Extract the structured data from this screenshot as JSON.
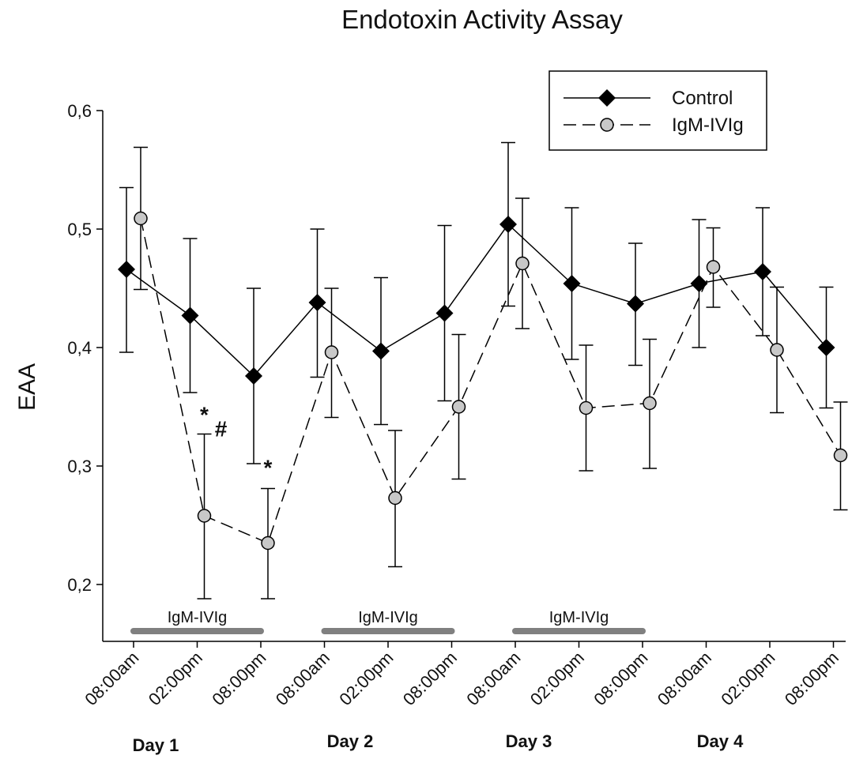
{
  "chart_data": {
    "type": "line",
    "title": "Endotoxin Activity Assay",
    "xlabel": "",
    "ylabel": "EAA",
    "ylim": [
      0.15,
      0.6
    ],
    "yticks": [
      "0,2",
      "0,3",
      "0,4",
      "0,5",
      "0,6"
    ],
    "ytick_values": [
      0.2,
      0.3,
      0.4,
      0.5,
      0.6
    ],
    "categories": [
      "08:00am",
      "02:00pm",
      "08:00pm",
      "08:00am",
      "02:00pm",
      "08:00pm",
      "08:00am",
      "02:00pm",
      "08:00pm",
      "08:00am",
      "02:00pm",
      "08:00pm"
    ],
    "days": [
      {
        "label": "Day 1",
        "start_index": 0
      },
      {
        "label": "Day 2",
        "start_index": 3
      },
      {
        "label": "Day 3",
        "start_index": 6
      },
      {
        "label": "Day 4",
        "start_index": 9
      }
    ],
    "series": [
      {
        "name": "Control",
        "marker": "diamond",
        "line_style": "solid",
        "color": "#000000",
        "values": [
          0.466,
          0.427,
          0.376,
          0.438,
          0.397,
          0.429,
          0.504,
          0.454,
          0.437,
          0.454,
          0.464,
          0.4
        ],
        "error_upper": [
          0.535,
          0.492,
          0.45,
          0.5,
          0.459,
          0.503,
          0.573,
          0.518,
          0.488,
          0.508,
          0.518,
          0.451
        ],
        "error_lower": [
          0.396,
          0.362,
          0.302,
          0.375,
          0.335,
          0.355,
          0.435,
          0.39,
          0.385,
          0.4,
          0.41,
          0.349
        ]
      },
      {
        "name": "IgM-IVIg",
        "marker": "circle",
        "line_style": "dashed",
        "color": "#c8c8c8",
        "values": [
          0.509,
          0.258,
          0.235,
          0.396,
          0.273,
          0.35,
          0.471,
          0.349,
          0.353,
          0.468,
          0.398,
          0.309
        ],
        "error_upper": [
          0.569,
          0.327,
          0.281,
          0.45,
          0.33,
          0.411,
          0.526,
          0.402,
          0.407,
          0.501,
          0.451,
          0.354
        ],
        "error_lower": [
          0.449,
          0.188,
          0.188,
          0.341,
          0.215,
          0.289,
          0.416,
          0.296,
          0.298,
          0.434,
          0.345,
          0.263
        ]
      }
    ],
    "treatment_bars": [
      {
        "label": "IgM-IVIg",
        "start_index": 0,
        "end_index": 2
      },
      {
        "label": "IgM-IVIg",
        "start_index": 3,
        "end_index": 5
      },
      {
        "label": "IgM-IVIg",
        "start_index": 6,
        "end_index": 8
      }
    ],
    "annotations": [
      {
        "text": "*",
        "index": 1
      },
      {
        "text": "#",
        "index": 1
      },
      {
        "text": "*",
        "index": 2
      }
    ],
    "legend": {
      "placement": "top-right",
      "entries": [
        "Control",
        "IgM-IVIg"
      ]
    },
    "grid": false
  }
}
